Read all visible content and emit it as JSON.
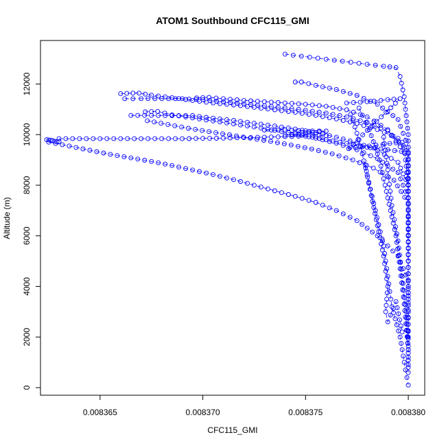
{
  "chart_data": {
    "type": "scatter",
    "title": "ATOM1 Southbound CFC115_GMI",
    "xlabel": "CFC115_GMI",
    "ylabel": "Altitude (m)",
    "xlim": [
      0.0083621,
      0.0083808
    ],
    "ylim": [
      -300,
      13720
    ],
    "xticks": [
      0.008365,
      0.00837,
      0.008375,
      0.00838
    ],
    "xtick_labels": [
      "0.008365",
      "0.008370",
      "0.008375",
      "0.008380"
    ],
    "yticks": [
      0,
      2000,
      4000,
      6000,
      8000,
      10000,
      12000
    ],
    "ytick_labels": [
      "0",
      "2000",
      "4000",
      "6000",
      "8000",
      "10000",
      "12000"
    ],
    "marker": "open-circle",
    "color": "#0000ff",
    "grid": false,
    "legend": "none",
    "series": [
      {
        "points": [
          [
            0.0083624,
            9800
          ],
          [
            0.0083625,
            9790
          ],
          [
            0.0083626,
            9780
          ],
          [
            0.0083627,
            9760
          ],
          [
            0.0083628,
            9730
          ],
          [
            0.0083629,
            9720
          ],
          [
            0.008363,
            9720
          ]
        ]
      },
      {
        "points": [
          [
            0.008363,
            9840
          ],
          [
            0.008364,
            9840
          ],
          [
            0.008365,
            9840
          ],
          [
            0.008366,
            9840
          ],
          [
            0.008367,
            9840
          ],
          [
            0.008368,
            9840
          ],
          [
            0.008369,
            9840
          ],
          [
            0.00837,
            9850
          ],
          [
            0.008371,
            9860
          ],
          [
            0.008372,
            9880
          ],
          [
            0.008373,
            9900
          ],
          [
            0.008374,
            9920
          ],
          [
            0.008375,
            9940
          ],
          [
            0.008376,
            9800
          ],
          [
            0.008377,
            9650
          ],
          [
            0.008378,
            9500
          ],
          [
            0.008379,
            9400
          ],
          [
            0.00838,
            9300
          ]
        ]
      },
      {
        "points": [
          [
            0.0083625,
            9700
          ],
          [
            0.0083635,
            9550
          ],
          [
            0.0083645,
            9380
          ],
          [
            0.0083655,
            9220
          ],
          [
            0.0083665,
            9080
          ],
          [
            0.0083675,
            8940
          ],
          [
            0.0083685,
            8780
          ],
          [
            0.0083695,
            8600
          ],
          [
            0.0083705,
            8420
          ],
          [
            0.0083715,
            8220
          ],
          [
            0.0083725,
            8000
          ],
          [
            0.0083735,
            7780
          ],
          [
            0.0083745,
            7560
          ],
          [
            0.0083755,
            7320
          ],
          [
            0.0083765,
            7000
          ],
          [
            0.0083775,
            6600
          ],
          [
            0.0083785,
            6000
          ],
          [
            0.0083795,
            5200
          ],
          [
            0.00838,
            4200
          ],
          [
            0.00838,
            2500
          ],
          [
            0.00838,
            800
          ]
        ]
      },
      {
        "points": [
          [
            0.008366,
            11620
          ],
          [
            0.0083663,
            11630
          ],
          [
            0.0083666,
            11640
          ],
          [
            0.0083669,
            11640
          ],
          [
            0.0083675,
            11560
          ],
          [
            0.0083685,
            11460
          ],
          [
            0.0083695,
            11350
          ],
          [
            0.0083705,
            11250
          ],
          [
            0.0083715,
            11170
          ],
          [
            0.0083725,
            11080
          ],
          [
            0.0083735,
            10980
          ],
          [
            0.0083745,
            10880
          ],
          [
            0.0083755,
            10760
          ],
          [
            0.0083765,
            10620
          ],
          [
            0.0083775,
            10440
          ],
          [
            0.0083785,
            10200
          ],
          [
            0.0083795,
            9850
          ],
          [
            0.00838,
            9300
          ],
          [
            0.00838,
            7000
          ],
          [
            0.00838,
            3000
          ]
        ]
      },
      {
        "points": [
          [
            0.0083662,
            11420
          ],
          [
            0.008367,
            11420
          ],
          [
            0.008368,
            11420
          ],
          [
            0.008369,
            11420
          ],
          [
            0.00837,
            11380
          ],
          [
            0.008371,
            11300
          ],
          [
            0.008372,
            11220
          ],
          [
            0.008373,
            11140
          ],
          [
            0.008374,
            11060
          ],
          [
            0.008375,
            10960
          ],
          [
            0.008376,
            10850
          ],
          [
            0.008377,
            10700
          ],
          [
            0.008378,
            10480
          ],
          [
            0.008379,
            10150
          ],
          [
            0.0083798,
            9500
          ],
          [
            0.00838,
            8000
          ],
          [
            0.00838,
            5000
          ]
        ]
      },
      {
        "points": [
          [
            0.0083697,
            11450
          ],
          [
            0.00837,
            11460
          ],
          [
            0.0083703,
            11470
          ],
          [
            0.008371,
            11420
          ],
          [
            0.008372,
            11350
          ],
          [
            0.008373,
            11300
          ],
          [
            0.008374,
            11250
          ],
          [
            0.008375,
            11200
          ],
          [
            0.008376,
            11120
          ],
          [
            0.008377,
            10980
          ],
          [
            0.008378,
            10700
          ],
          [
            0.008379,
            10200
          ],
          [
            0.0083798,
            9300
          ]
        ]
      },
      {
        "points": [
          [
            0.0083665,
            10760
          ],
          [
            0.0083675,
            10760
          ],
          [
            0.0083685,
            10750
          ],
          [
            0.0083695,
            10750
          ],
          [
            0.0083705,
            10650
          ],
          [
            0.0083715,
            10560
          ],
          [
            0.0083725,
            10450
          ],
          [
            0.0083735,
            10340
          ],
          [
            0.0083745,
            10220
          ],
          [
            0.0083755,
            10080
          ],
          [
            0.0083765,
            9900
          ],
          [
            0.0083775,
            9680
          ],
          [
            0.0083785,
            9380
          ],
          [
            0.0083795,
            8900
          ],
          [
            0.00838,
            8000
          ],
          [
            0.00838,
            5500
          ],
          [
            0.00838,
            2000
          ]
        ]
      },
      {
        "points": [
          [
            0.0083672,
            10900
          ],
          [
            0.0083675,
            10910
          ],
          [
            0.0083678,
            10920
          ],
          [
            0.0083685,
            10780
          ],
          [
            0.0083695,
            10660
          ],
          [
            0.0083705,
            10540
          ],
          [
            0.0083715,
            10420
          ],
          [
            0.0083725,
            10300
          ],
          [
            0.0083735,
            10170
          ],
          [
            0.0083745,
            10030
          ],
          [
            0.0083755,
            9860
          ],
          [
            0.0083765,
            9660
          ],
          [
            0.0083775,
            9400
          ],
          [
            0.0083785,
            9050
          ],
          [
            0.0083795,
            8500
          ],
          [
            0.00838,
            7500
          ]
        ]
      },
      {
        "points": [
          [
            0.0083673,
            10550
          ],
          [
            0.0083683,
            10400
          ],
          [
            0.0083693,
            10250
          ],
          [
            0.0083703,
            10120
          ],
          [
            0.0083713,
            9990
          ],
          [
            0.0083723,
            9860
          ],
          [
            0.0083733,
            9730
          ],
          [
            0.0083743,
            9590
          ],
          [
            0.0083753,
            9430
          ],
          [
            0.0083763,
            9240
          ],
          [
            0.0083773,
            9000
          ],
          [
            0.0083783,
            8680
          ],
          [
            0.0083793,
            8200
          ],
          [
            0.00838,
            7300
          ],
          [
            0.00838,
            4500
          ]
        ]
      },
      {
        "points": [
          [
            0.0083745,
            12080
          ],
          [
            0.0083748,
            12080
          ],
          [
            0.0083755,
            11950
          ],
          [
            0.0083765,
            11780
          ],
          [
            0.0083775,
            11550
          ],
          [
            0.0083785,
            11200
          ],
          [
            0.0083795,
            10600
          ],
          [
            0.00838,
            9500
          ],
          [
            0.00838,
            6000
          ]
        ]
      },
      {
        "points": [
          [
            0.008374,
            13180
          ],
          [
            0.0083748,
            13100
          ],
          [
            0.0083756,
            13020
          ],
          [
            0.0083764,
            12940
          ],
          [
            0.0083772,
            12860
          ],
          [
            0.008378,
            12780
          ],
          [
            0.0083788,
            12700
          ],
          [
            0.0083794,
            12650
          ],
          [
            0.0083796,
            12300
          ],
          [
            0.0083798,
            11500
          ],
          [
            0.00838,
            10000
          ],
          [
            0.00838,
            6000
          ]
        ]
      },
      {
        "points": [
          [
            0.008373,
            10180
          ],
          [
            0.008374,
            10180
          ],
          [
            0.008375,
            10150
          ],
          [
            0.008376,
            10140
          ],
          [
            0.008374,
            9980
          ],
          [
            0.008375,
            10000
          ],
          [
            0.008376,
            9960
          ]
        ]
      },
      {
        "points": [
          [
            0.008377,
            11250
          ],
          [
            0.008378,
            11300
          ],
          [
            0.008379,
            11380
          ],
          [
            0.0083796,
            11420
          ],
          [
            0.0083771,
            9450
          ],
          [
            0.0083781,
            9550
          ],
          [
            0.0083791,
            9650
          ],
          [
            0.0083797,
            9700
          ]
        ]
      },
      {
        "points": [
          [
            0.0083772,
            10800
          ],
          [
            0.0083776,
            9800
          ],
          [
            0.008378,
            8400
          ],
          [
            0.0083784,
            7000
          ],
          [
            0.0083788,
            5600
          ],
          [
            0.008379,
            4400
          ],
          [
            0.0083792,
            3200
          ],
          [
            0.0083796,
            2000
          ],
          [
            0.0083798,
            1000
          ],
          [
            0.00838,
            100
          ]
        ]
      },
      {
        "points": [
          [
            0.0083776,
            11050
          ],
          [
            0.0083781,
            10200
          ],
          [
            0.0083786,
            9000
          ],
          [
            0.008379,
            7500
          ],
          [
            0.0083794,
            6000
          ],
          [
            0.0083796,
            4700
          ],
          [
            0.0083798,
            3300
          ],
          [
            0.00838,
            1500
          ],
          [
            0.00838,
            600
          ]
        ]
      },
      {
        "points": [
          [
            0.0083788,
            9900
          ],
          [
            0.008379,
            8600
          ],
          [
            0.0083792,
            7200
          ],
          [
            0.0083795,
            5800
          ],
          [
            0.0083797,
            4400
          ],
          [
            0.0083799,
            3000
          ],
          [
            0.00838,
            1500
          ]
        ]
      },
      {
        "points": [
          [
            0.0083779,
            8800
          ],
          [
            0.0083782,
            7600
          ],
          [
            0.0083785,
            6400
          ],
          [
            0.0083788,
            5200
          ],
          [
            0.008379,
            4000
          ],
          [
            0.0083789,
            3000
          ],
          [
            0.008379,
            2600
          ],
          [
            0.0083794,
            3400
          ],
          [
            0.0083797,
            2200
          ]
        ]
      }
    ]
  }
}
